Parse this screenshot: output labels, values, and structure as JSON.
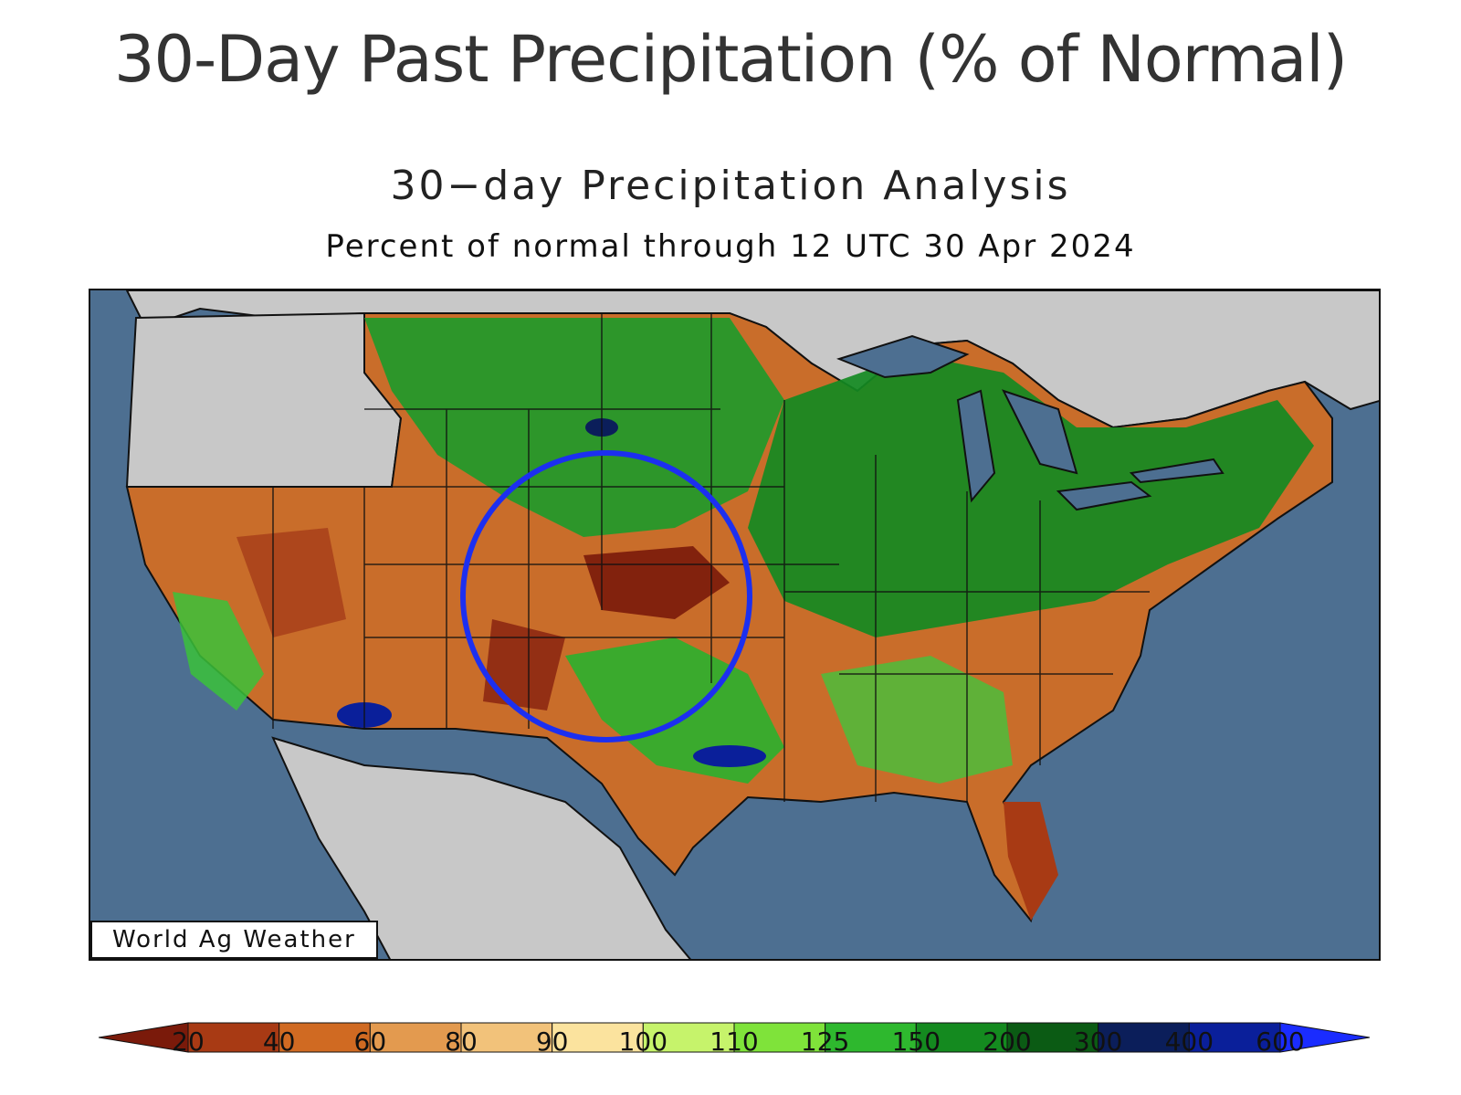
{
  "header": {
    "page_title": "30-Day Past Precipitation (% of Normal)",
    "map_title": "30−day Precipitation Analysis",
    "map_subtitle": "Percent of normal through 12 UTC 30 Apr 2024"
  },
  "map": {
    "watermark": "World Ag Weather",
    "highlight_circle_color": "#1c2ff0",
    "colors": {
      "ocean": "#4d6f91",
      "land_outside": "#c8c8c8",
      "border": "#111111"
    }
  },
  "legend": {
    "labels": [
      "20",
      "40",
      "60",
      "80",
      "90",
      "100",
      "110",
      "125",
      "150",
      "200",
      "300",
      "400",
      "600"
    ],
    "colors": [
      "#7a1a0a",
      "#a83a14",
      "#d06a22",
      "#e39a4f",
      "#f2c27a",
      "#fbe39e",
      "#c6f36b",
      "#7fe33a",
      "#2eb82e",
      "#148a1f",
      "#0b5b14",
      "#0b1e5a",
      "#0a1f9a",
      "#1a2cff"
    ]
  }
}
